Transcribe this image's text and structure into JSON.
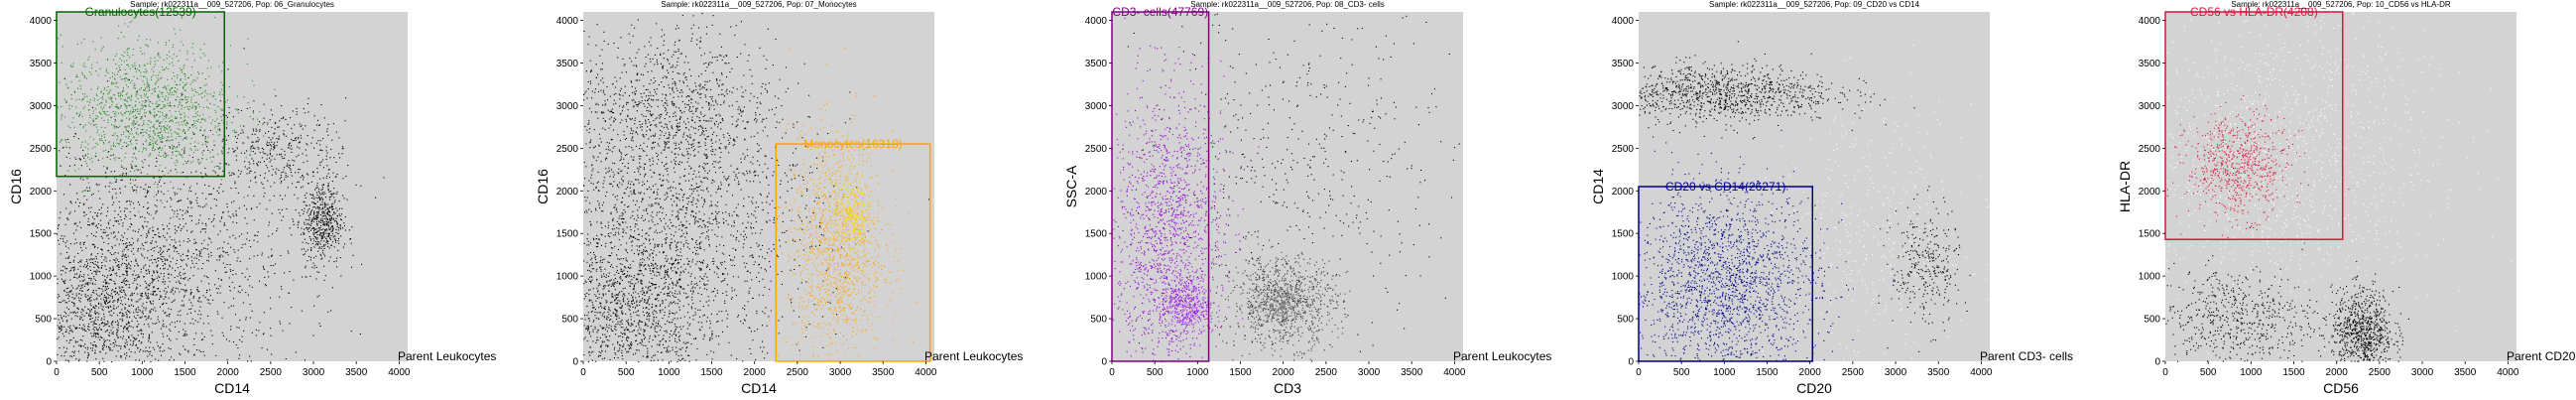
{
  "chart_data": [
    {
      "type": "scatter",
      "title": "Sample: rk022311a__009_527206, Pop: 06_Granulocytes",
      "xlabel": "CD14",
      "ylabel": "CD16",
      "xlim": [
        0,
        4100
      ],
      "ylim": [
        0,
        4100
      ],
      "xticks": [
        0,
        500,
        1000,
        1500,
        2000,
        2500,
        3000,
        3500,
        4000
      ],
      "yticks": [
        0,
        500,
        1000,
        1500,
        2000,
        2500,
        3000,
        3500,
        4000
      ],
      "parent_label": "Parent Leukocytes",
      "gate": {
        "label": "Granulocytes(12539)",
        "color": "#006400",
        "x": [
          0,
          1960
        ],
        "y": [
          2170,
          4100
        ]
      },
      "clusters": [
        {
          "name": "background",
          "color": "#000000",
          "cx": 1100,
          "cy": 1200,
          "sx": 900,
          "sy": 750,
          "n": 1800
        },
        {
          "name": "low",
          "color": "#000000",
          "cx": 500,
          "cy": 600,
          "sx": 450,
          "sy": 450,
          "n": 1000
        },
        {
          "name": "diagonal",
          "color": "#000000",
          "cx": 2600,
          "cy": 2500,
          "sx": 400,
          "sy": 250,
          "n": 350
        },
        {
          "name": "monocytes",
          "color": "#000000",
          "cx": 3100,
          "cy": 1650,
          "sx": 120,
          "sy": 250,
          "n": 500
        },
        {
          "name": "gated",
          "color": "#228B22",
          "cx": 1050,
          "cy": 2950,
          "sx": 500,
          "sy": 400,
          "n": 1300
        }
      ]
    },
    {
      "type": "scatter",
      "title": "Sample: rk022311a__009_527206, Pop: 07_Monocytes",
      "xlabel": "CD14",
      "ylabel": "CD16",
      "xlim": [
        0,
        4100
      ],
      "ylim": [
        0,
        4100
      ],
      "xticks": [
        0,
        500,
        1000,
        1500,
        2000,
        2500,
        3000,
        3500,
        4000
      ],
      "yticks": [
        0,
        500,
        1000,
        1500,
        2000,
        2500,
        3000,
        3500,
        4000
      ],
      "parent_label": "Parent Leukocytes",
      "gate": {
        "label": "Monocytes(16318)",
        "color": "#FFA500",
        "x": [
          2250,
          4050
        ],
        "y": [
          0,
          2550
        ]
      },
      "clusters": [
        {
          "name": "background",
          "color": "#000000",
          "cx": 1000,
          "cy": 1600,
          "sx": 850,
          "sy": 900,
          "n": 2200
        },
        {
          "name": "low",
          "color": "#000000",
          "cx": 500,
          "cy": 600,
          "sx": 450,
          "sy": 450,
          "n": 1000
        },
        {
          "name": "granulocytes",
          "color": "#000000",
          "cx": 1050,
          "cy": 3000,
          "sx": 550,
          "sy": 450,
          "n": 700
        },
        {
          "name": "gated",
          "color": "#FFA500",
          "cx": 2950,
          "cy": 1350,
          "sx": 280,
          "sy": 650,
          "n": 1300
        },
        {
          "name": "core",
          "color": "#FFD700",
          "cx": 3150,
          "cy": 1700,
          "sx": 90,
          "sy": 220,
          "n": 250
        }
      ]
    },
    {
      "type": "scatter",
      "title": "Sample: rk022311a__009_527206, Pop: 08_CD3- cells",
      "xlabel": "CD3",
      "ylabel": "SSC-A",
      "xlim": [
        0,
        4100
      ],
      "ylim": [
        0,
        4100
      ],
      "xticks": [
        0,
        500,
        1000,
        1500,
        2000,
        2500,
        3000,
        3500,
        4000
      ],
      "yticks": [
        0,
        500,
        1000,
        1500,
        2000,
        2500,
        3000,
        3500,
        4000
      ],
      "parent_label": "Parent Leukocytes",
      "gate": {
        "label": "CD3- cells(47769)",
        "color": "#800080",
        "x": [
          0,
          1130
        ],
        "y": [
          0,
          4100
        ]
      },
      "clusters": [
        {
          "name": "tcells",
          "color": "#404040",
          "cx": 2000,
          "cy": 700,
          "sx": 300,
          "sy": 260,
          "n": 900
        },
        {
          "name": "tcells-core",
          "color": "#808080",
          "cx": 1950,
          "cy": 680,
          "sx": 140,
          "sy": 110,
          "n": 250
        },
        {
          "name": "spread",
          "color": "#000000",
          "cx": 2200,
          "cy": 2200,
          "sx": 900,
          "sy": 1000,
          "n": 500
        },
        {
          "name": "gated",
          "color": "#9400D3",
          "cx": 650,
          "cy": 1500,
          "sx": 320,
          "sy": 850,
          "n": 1500
        },
        {
          "name": "gated-core",
          "color": "#A020F0",
          "cx": 850,
          "cy": 650,
          "sx": 140,
          "sy": 170,
          "n": 400
        }
      ]
    },
    {
      "type": "scatter",
      "title": "Sample: rk022311a__009_527206, Pop: 09_CD20 vs CD14",
      "xlabel": "CD20",
      "ylabel": "CD14",
      "xlim": [
        0,
        4100
      ],
      "ylim": [
        0,
        4100
      ],
      "xticks": [
        0,
        500,
        1000,
        1500,
        2000,
        2500,
        3000,
        3500,
        4000
      ],
      "yticks": [
        0,
        500,
        1000,
        1500,
        2000,
        2500,
        3000,
        3500,
        4000
      ],
      "parent_label": "Parent CD3- cells",
      "gate": {
        "label": "CD20 vs CD14(26271)",
        "color": "#00008B",
        "x": [
          0,
          2030
        ],
        "y": [
          0,
          2050
        ]
      },
      "clusters": [
        {
          "name": "upper",
          "color": "#000000",
          "cx": 900,
          "cy": 3150,
          "sx": 700,
          "sy": 170,
          "n": 1100
        },
        {
          "name": "outside",
          "color": "#ffffff",
          "cx": 2700,
          "cy": 1500,
          "sx": 600,
          "sy": 800,
          "n": 400
        },
        {
          "name": "right",
          "color": "#000000",
          "cx": 3350,
          "cy": 1100,
          "sx": 200,
          "sy": 350,
          "n": 300
        },
        {
          "name": "gated",
          "color": "#00008B",
          "cx": 1000,
          "cy": 900,
          "sx": 550,
          "sy": 550,
          "n": 2000
        }
      ]
    },
    {
      "type": "scatter",
      "title": "Sample: rk022311a__009_527206, Pop: 10_CD56 vs HLA-DR",
      "xlabel": "CD56",
      "ylabel": "HLA-DR",
      "xlim": [
        0,
        4100
      ],
      "ylim": [
        0,
        4100
      ],
      "xticks": [
        0,
        500,
        1000,
        1500,
        2000,
        2500,
        3000,
        3500,
        4000
      ],
      "yticks": [
        0,
        500,
        1000,
        1500,
        2000,
        2500,
        3000,
        3500,
        4000
      ],
      "parent_label": "Parent CD20 vs CD14",
      "gate": {
        "label": "CD56 vs HLA-DR(4208)",
        "color": "#DC143C",
        "x": [
          0,
          2070
        ],
        "y": [
          1430,
          4100
        ]
      },
      "clusters": [
        {
          "name": "background",
          "color": "#ffffff",
          "cx": 1300,
          "cy": 2400,
          "sx": 900,
          "sy": 900,
          "n": 1400
        },
        {
          "name": "low",
          "color": "#000000",
          "cx": 800,
          "cy": 500,
          "sx": 500,
          "sy": 300,
          "n": 600
        },
        {
          "name": "nk",
          "color": "#000000",
          "cx": 2300,
          "cy": 350,
          "sx": 180,
          "sy": 250,
          "n": 800
        },
        {
          "name": "gated",
          "color": "#DC143C",
          "cx": 850,
          "cy": 2300,
          "sx": 300,
          "sy": 300,
          "n": 700
        }
      ]
    }
  ]
}
